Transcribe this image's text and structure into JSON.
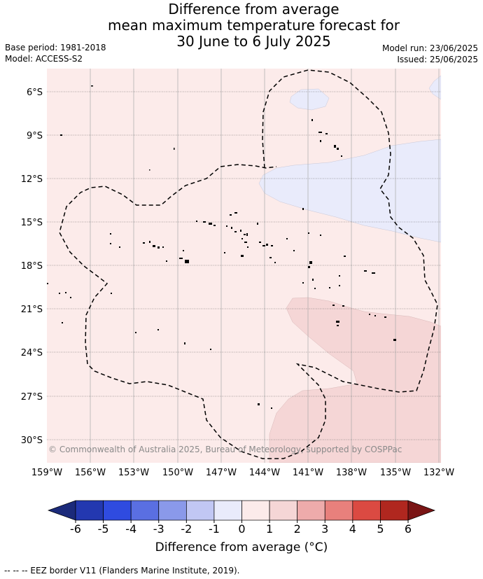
{
  "title": {
    "line1": "Difference from average",
    "line2": "mean maximum temperature forecast for",
    "line3": "30 June to 6 July 2025"
  },
  "meta": {
    "base_period": "Base period: 1981-2018",
    "model": "Model: ACCESS-S2",
    "model_run": "Model run: 23/06/2025",
    "issued": "Issued: 25/06/2025"
  },
  "map": {
    "lat_labels": [
      "6°S",
      "9°S",
      "12°S",
      "15°S",
      "18°S",
      "21°S",
      "24°S",
      "27°S",
      "30°S"
    ],
    "lon_labels": [
      "159°W",
      "156°W",
      "153°W",
      "150°W",
      "147°W",
      "144°W",
      "141°W",
      "138°W",
      "135°W",
      "132°W"
    ],
    "copyright": "© Commonwealth of Australia 2025, Bureau of Meteorology, supported by COSPPac",
    "colors": {
      "background_anomaly": "#fcebea",
      "cool_anomaly": "#e9ebfb",
      "warm_anomaly": "#f5d6d6"
    }
  },
  "colorbar": {
    "ticks": [
      "-6",
      "-5",
      "-4",
      "-3",
      "-2",
      "-1",
      "0",
      "1",
      "2",
      "3",
      "4",
      "5",
      "6"
    ],
    "colors": [
      "#1b2a7a",
      "#2338b0",
      "#2f4be0",
      "#5a6fe2",
      "#8a99ea",
      "#c1c7f4",
      "#e9ebfb",
      "#fcebea",
      "#f5d6d6",
      "#eeabab",
      "#e8807c",
      "#db4a42",
      "#b0271f",
      "#7a1515"
    ],
    "title": "Difference from average (°C)"
  },
  "footnote": "-- -- -- EEZ border V11 (Flanders Marine Institute, 2019)."
}
